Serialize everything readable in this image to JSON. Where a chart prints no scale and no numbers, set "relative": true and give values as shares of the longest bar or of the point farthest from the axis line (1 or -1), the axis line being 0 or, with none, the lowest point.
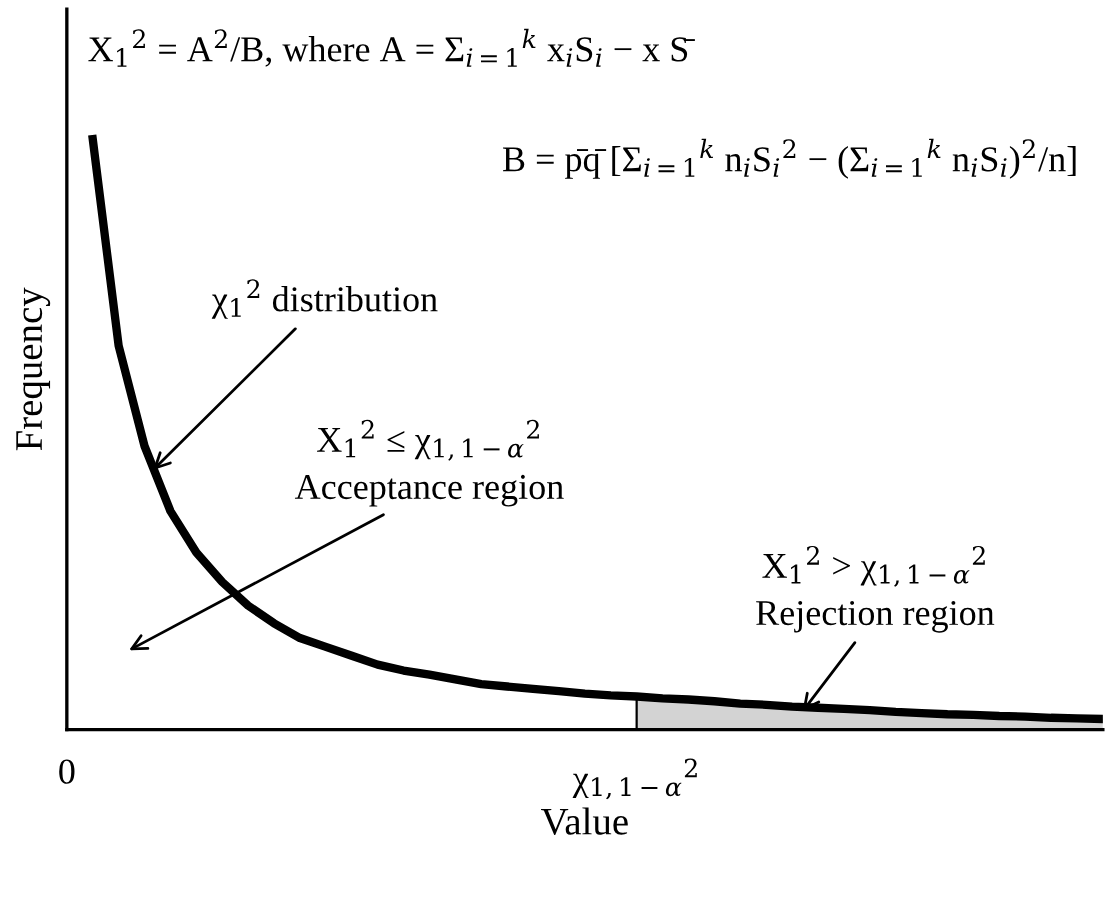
{
  "chart_data": {
    "type": "line",
    "relative": true,
    "xlabel": "Value",
    "ylabel": "Frequency",
    "categories": [
      "0",
      null,
      null,
      null,
      null,
      null,
      null,
      null,
      null,
      null,
      null,
      null,
      null,
      null,
      null,
      null,
      null,
      null,
      null,
      null,
      null,
      null,
      "χ$_{1,1−α}$$^{2}$",
      null,
      null,
      null,
      null,
      null,
      null,
      null,
      null,
      null,
      null,
      null,
      null,
      null,
      null,
      null,
      null,
      null,
      null
    ],
    "series": [
      {
        "type": "area",
        "color": "#d3d3d3",
        "values": [
          null,
          null,
          null,
          null,
          null,
          null,
          null,
          null,
          null,
          null,
          null,
          null,
          null,
          null,
          null,
          null,
          null,
          null,
          null,
          null,
          null,
          null,
          0.056,
          0.053,
          0.051,
          0.048,
          0.044,
          0.042,
          0.039,
          0.037,
          0.035,
          0.033,
          0.03,
          0.028,
          0.026,
          0.025,
          0.023,
          0.022,
          0.02,
          0.019,
          0.018
        ]
      },
      {
        "color": "#000000",
        "values": [
          null,
          1.0,
          0.65,
          0.48,
          0.37,
          0.3,
          0.25,
          0.21,
          0.18,
          0.155,
          0.14,
          0.125,
          0.11,
          0.1,
          0.093,
          0.085,
          0.077,
          0.073,
          0.069,
          0.065,
          0.061,
          0.058,
          0.056,
          0.053,
          0.051,
          0.048,
          0.044,
          0.042,
          0.039,
          0.037,
          0.035,
          0.033,
          0.03,
          0.028,
          0.026,
          0.025,
          0.023,
          0.022,
          0.02,
          0.019,
          0.018
        ]
      }
    ],
    "tick_labels": "x",
    "marker": "none",
    "line_style": "solid",
    "annotations": [
      "X$_{1}$$^{2}$ = A$^{2}$/B, where A = Σ$_{i=1}$$^{k}$ x$_{i}$S$_{i}$ − x S̄",
      "B = p̄q̄ [Σ$_{i=1}$$^{k}$ n$_{i}$S$_{i}$$^{2}$ − (Σ$_{i=1}$$^{k}$ n$_{i}$S$_{i}$)$^{2}$/n]",
      "χ$_{1}$$^{2}$ distribution",
      "X$_{1}$$^{2}$ ≤ χ$_{1,1−α}$$^{2}$",
      "Acceptance region",
      "X$_{1}$$^{2}$ > χ$_{1,1−α}$$^{2}$",
      "Rejection region"
    ]
  }
}
